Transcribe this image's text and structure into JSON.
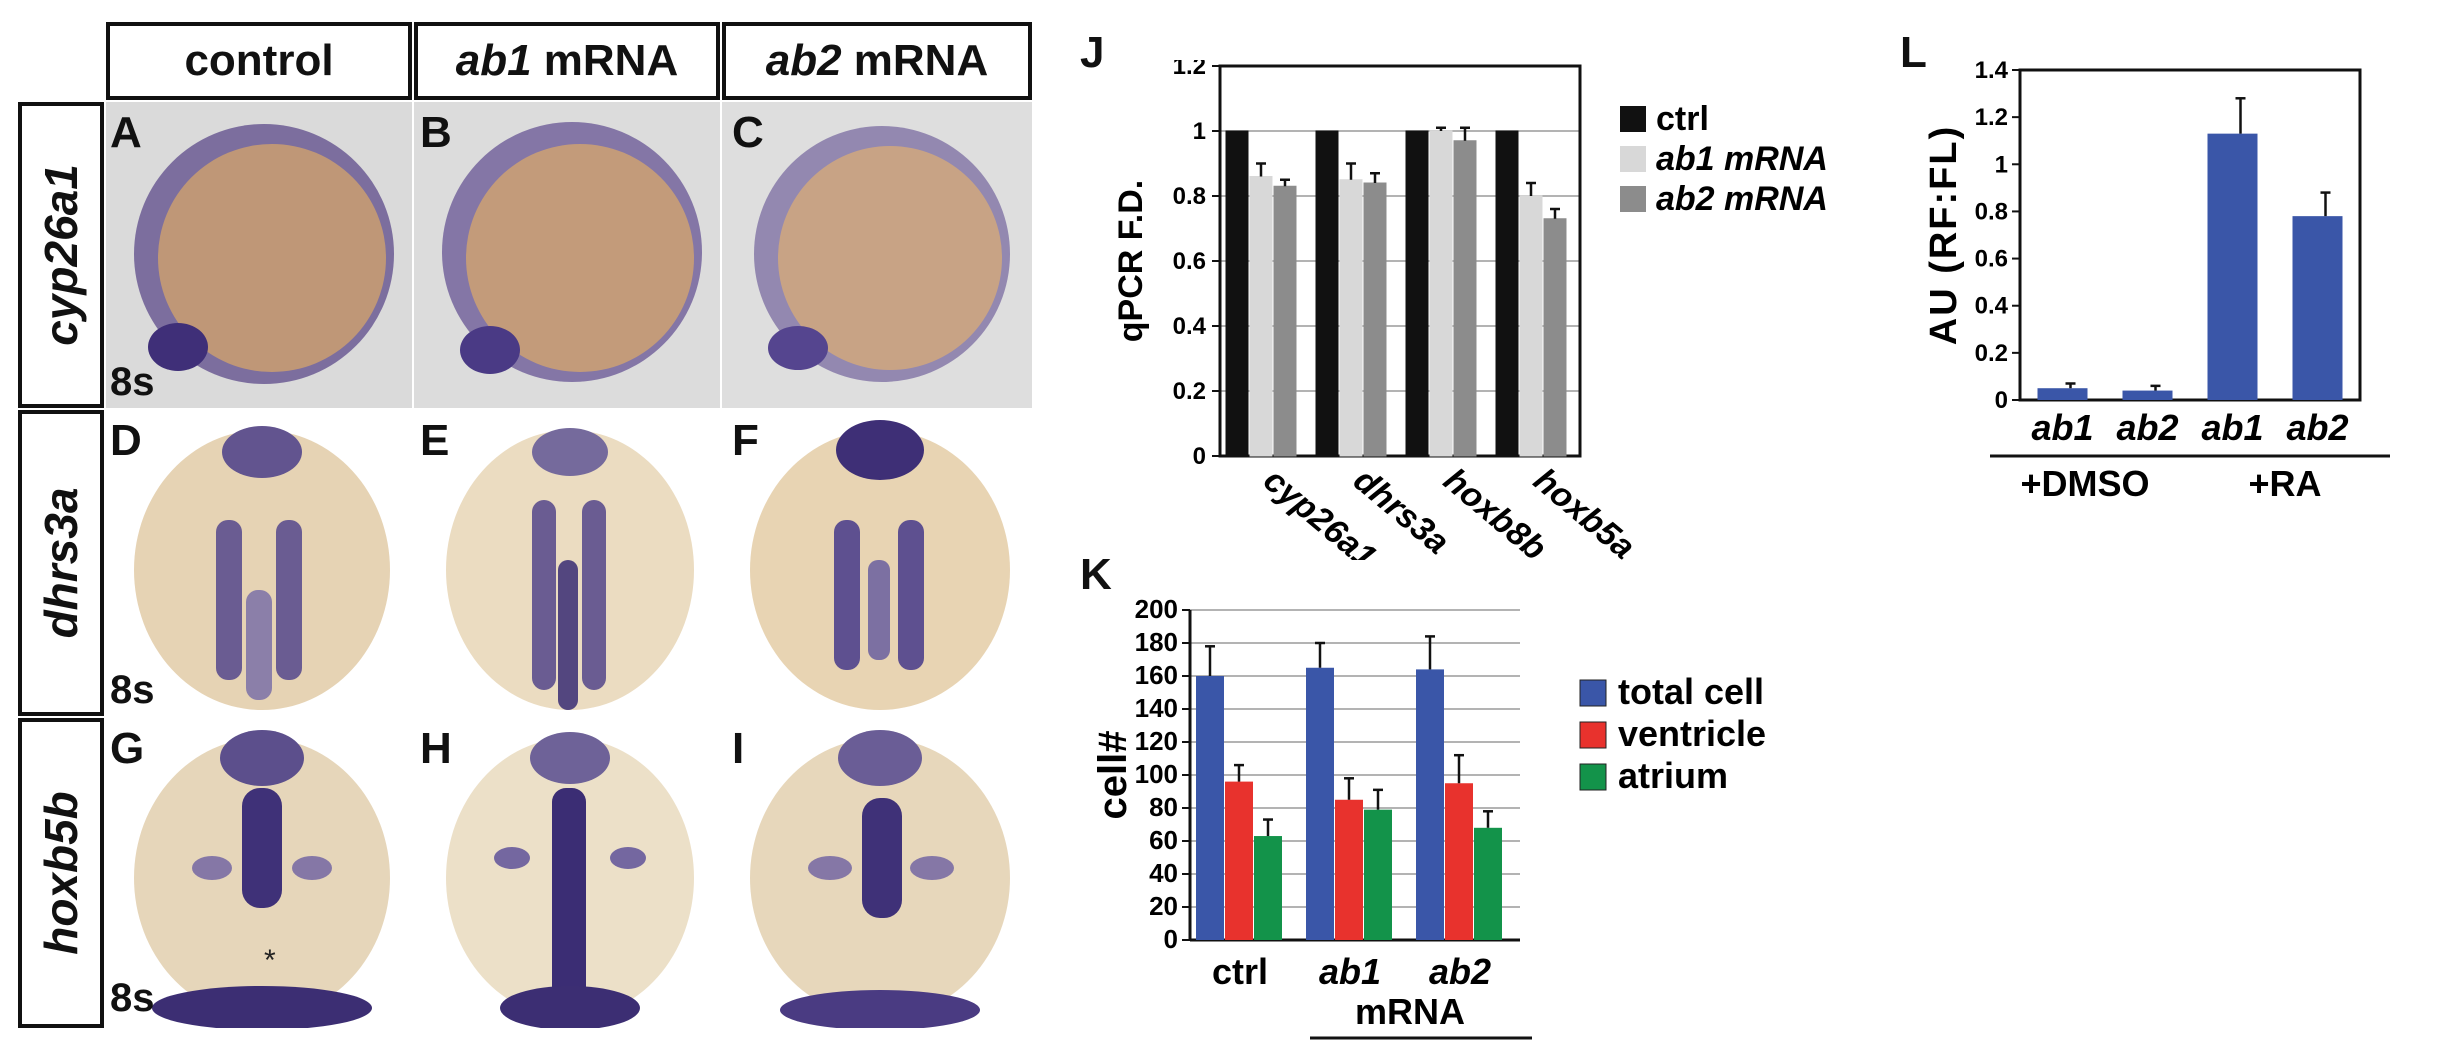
{
  "figure": {
    "column_headers": [
      {
        "text": "control"
      },
      {
        "italic": "ab1",
        "text": " mRNA"
      },
      {
        "italic": "ab2",
        "text": " mRNA"
      }
    ],
    "row_headers": [
      "cyp26a1",
      "dhrs3a",
      "hoxb5b"
    ],
    "panel_letters": [
      "A",
      "B",
      "C",
      "D",
      "E",
      "F",
      "G",
      "H",
      "I"
    ],
    "stage_label": "8s",
    "asterisk": "*"
  },
  "panel_letters_extra": {
    "J": "J",
    "K": "K",
    "L": "L"
  },
  "colors": {
    "ctrl": "#111111",
    "ab1_mrna": "#d8d8d8",
    "ab2_mrna": "#8c8c8c",
    "total_cell": "#3a56a8",
    "ventricle": "#e8322d",
    "atrium": "#13934a",
    "au_bar": "#3a56a8"
  },
  "chart_data": [
    {
      "panel": "J",
      "type": "bar",
      "ylabel": "qPCR F.D.",
      "ylim": [
        0,
        1.2
      ],
      "yticks": [
        "0",
        "0.2",
        "0.4",
        "0.6",
        "0.8",
        "1",
        "1.2"
      ],
      "categories": [
        "cyp26a1",
        "dhrs3a",
        "hoxb8b",
        "hoxb5a"
      ],
      "series": [
        {
          "name": "ctrl",
          "values": [
            1.0,
            1.0,
            1.0,
            1.0
          ],
          "errors": [
            0,
            0,
            0,
            0
          ]
        },
        {
          "name": "ab1 mRNA",
          "values": [
            0.86,
            0.85,
            1.0,
            0.8
          ],
          "errors": [
            0.04,
            0.05,
            0.01,
            0.04
          ]
        },
        {
          "name": "ab2 mRNA",
          "values": [
            0.83,
            0.84,
            0.97,
            0.73
          ],
          "errors": [
            0.02,
            0.03,
            0.04,
            0.03
          ]
        }
      ],
      "legend_position": "right",
      "grid": true
    },
    {
      "panel": "K",
      "type": "bar",
      "ylabel": "cell#",
      "ylim": [
        0,
        200
      ],
      "yticks": [
        "0",
        "20",
        "40",
        "60",
        "80",
        "100",
        "120",
        "140",
        "160",
        "180",
        "200"
      ],
      "categories": [
        "ctrl",
        "ab1",
        "ab2"
      ],
      "group_label": "mRNA",
      "series": [
        {
          "name": "total cell",
          "values": [
            160,
            165,
            164
          ],
          "errors": [
            18,
            15,
            20
          ]
        },
        {
          "name": "ventricle",
          "values": [
            96,
            85,
            95
          ],
          "errors": [
            10,
            13,
            17
          ]
        },
        {
          "name": "atrium",
          "values": [
            63,
            79,
            68
          ],
          "errors": [
            10,
            12,
            10
          ]
        }
      ],
      "legend_position": "right",
      "grid": true
    },
    {
      "panel": "L",
      "type": "bar",
      "ylabel": "AU (RF:FL)",
      "ylim": [
        0,
        1.4
      ],
      "yticks": [
        "0",
        "0.2",
        "0.4",
        "0.6",
        "0.8",
        "1",
        "1.2",
        "1.4"
      ],
      "categories": [
        "ab1",
        "ab2",
        "ab1",
        "ab2"
      ],
      "groups": [
        {
          "label": "+DMSO"
        },
        {
          "label": "+RA"
        }
      ],
      "series": [
        {
          "name": "AU",
          "values": [
            0.05,
            0.04,
            1.13,
            0.78
          ],
          "errors": [
            0.02,
            0.02,
            0.15,
            0.1
          ]
        }
      ],
      "grid": false
    }
  ]
}
